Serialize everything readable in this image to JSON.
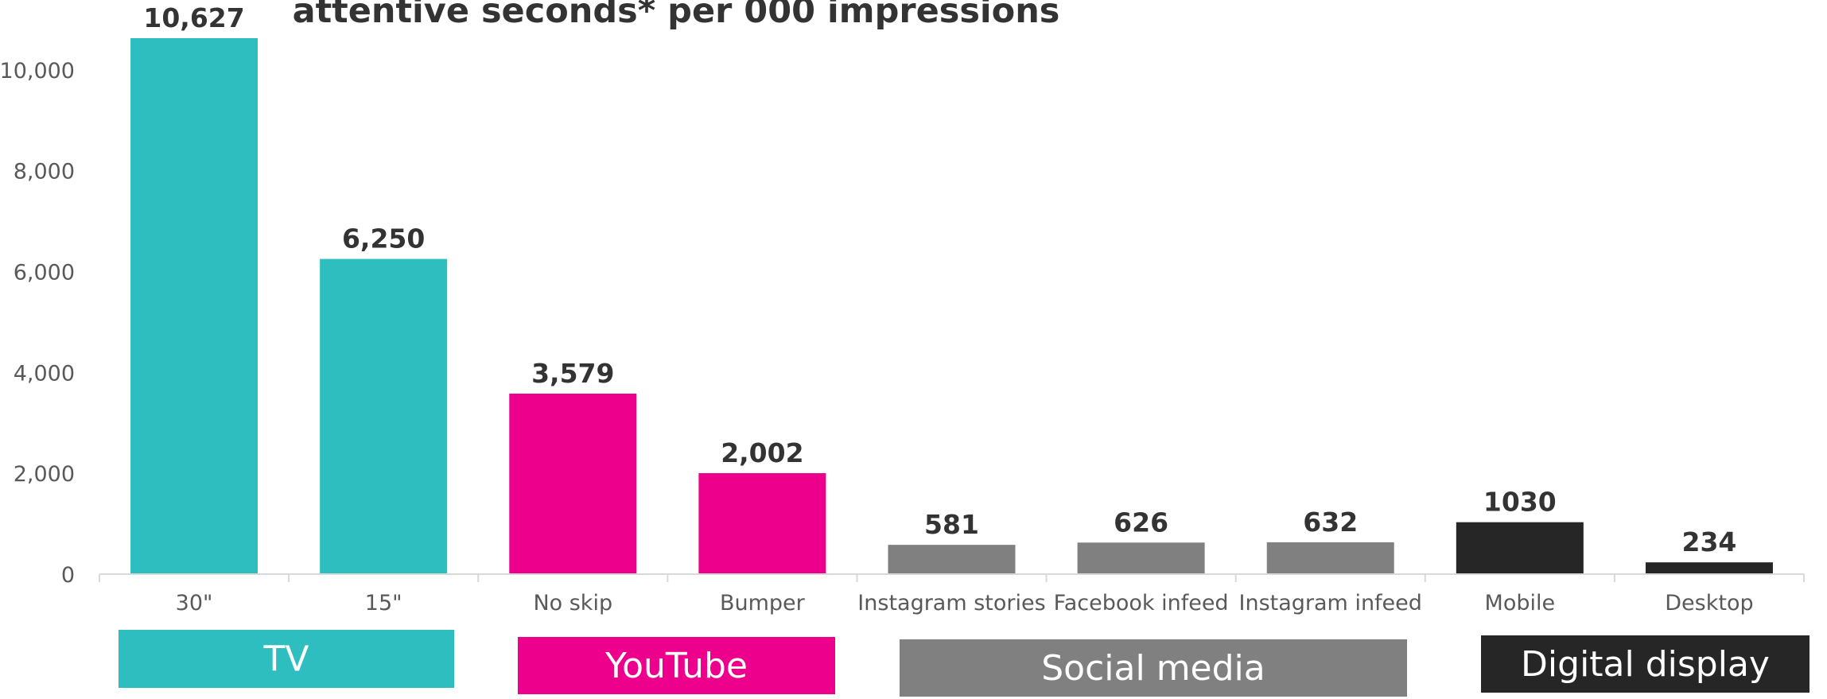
{
  "chart_data": {
    "type": "bar",
    "title": "attentive seconds* per 000 impressions",
    "categories": [
      "30\"",
      "15\"",
      "No skip",
      "Bumper",
      "Instagram stories",
      "Facebook infeed",
      "Instagram infeed",
      "Mobile",
      "Desktop"
    ],
    "values": [
      10627,
      6250,
      3579,
      2002,
      581,
      626,
      632,
      1030,
      234
    ],
    "data_labels": [
      "10,627",
      "6,250",
      "3,579",
      "2,002",
      "581",
      "626",
      "632",
      "1030",
      "234"
    ],
    "ylim": [
      0,
      10627
    ],
    "yticks": [
      "0",
      "2,000",
      "4,000",
      "6,000",
      "8,000",
      "10,000"
    ],
    "ytick_values": [
      0,
      2000,
      4000,
      6000,
      8000,
      10000
    ],
    "bar_colors": [
      "#2fbec0",
      "#2fbec0",
      "#ec008c",
      "#ec008c",
      "#808080",
      "#808080",
      "#808080",
      "#262626",
      "#262626"
    ],
    "groups": [
      {
        "label": "TV",
        "color": "#2fbec0",
        "category_range": [
          0,
          1
        ]
      },
      {
        "label": "YouTube",
        "color": "#ec008c",
        "category_range": [
          2,
          3
        ]
      },
      {
        "label": "Social media",
        "color": "#808080",
        "category_range": [
          4,
          6
        ]
      },
      {
        "label": "Digital display",
        "color": "#262626",
        "category_range": [
          7,
          8
        ]
      }
    ],
    "xlabel": "",
    "ylabel": "",
    "grid": false
  }
}
